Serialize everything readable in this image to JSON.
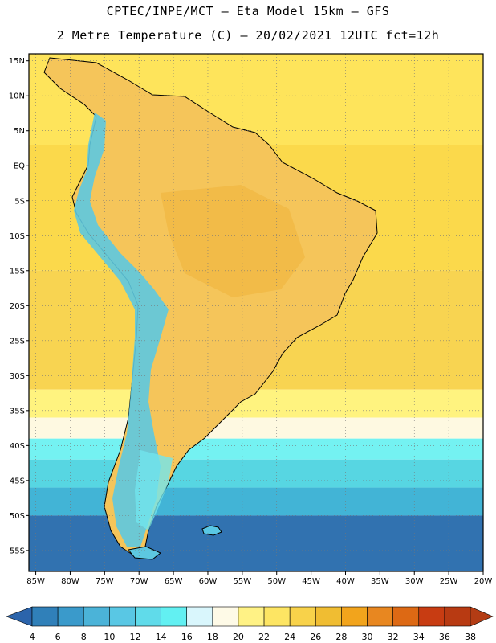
{
  "header": {
    "line1": "CPTEC/INPE/MCT –  Eta Model 15km – GFS",
    "line2": "2 Metre Temperature (C) – 20/02/2021 12UTC fct=12h"
  },
  "map": {
    "lon_range": [
      -86,
      -20
    ],
    "lat_range": [
      -58,
      16
    ],
    "lat_ticks": [
      {
        "v": 15,
        "label": "15N"
      },
      {
        "v": 10,
        "label": "10N"
      },
      {
        "v": 5,
        "label": "5N"
      },
      {
        "v": 0,
        "label": "EQ"
      },
      {
        "v": -5,
        "label": "5S"
      },
      {
        "v": -10,
        "label": "10S"
      },
      {
        "v": -15,
        "label": "15S"
      },
      {
        "v": -20,
        "label": "20S"
      },
      {
        "v": -25,
        "label": "25S"
      },
      {
        "v": -30,
        "label": "30S"
      },
      {
        "v": -35,
        "label": "35S"
      },
      {
        "v": -40,
        "label": "40S"
      },
      {
        "v": -45,
        "label": "45S"
      },
      {
        "v": -50,
        "label": "50S"
      },
      {
        "v": -55,
        "label": "55S"
      }
    ],
    "lon_ticks": [
      {
        "v": -85,
        "label": "85W"
      },
      {
        "v": -80,
        "label": "80W"
      },
      {
        "v": -75,
        "label": "75W"
      },
      {
        "v": -70,
        "label": "70W"
      },
      {
        "v": -65,
        "label": "65W"
      },
      {
        "v": -60,
        "label": "60W"
      },
      {
        "v": -55,
        "label": "55W"
      },
      {
        "v": -50,
        "label": "50W"
      },
      {
        "v": -45,
        "label": "45W"
      },
      {
        "v": -40,
        "label": "40W"
      },
      {
        "v": -35,
        "label": "35W"
      },
      {
        "v": -30,
        "label": "30W"
      },
      {
        "v": -25,
        "label": "25W"
      },
      {
        "v": -20,
        "label": "20W"
      }
    ],
    "grid": "dotted",
    "ocean_bands": [
      {
        "lat_top": 16,
        "lat_bottom": 3,
        "color": "#fee45b"
      },
      {
        "lat_top": 3,
        "lat_bottom": -15,
        "color": "#fbd94b"
      },
      {
        "lat_top": -15,
        "lat_bottom": -32,
        "color": "#f8d451"
      },
      {
        "lat_top": -32,
        "lat_bottom": -36,
        "color": "#fff37f"
      },
      {
        "lat_top": -36,
        "lat_bottom": -39,
        "color": "#fef9e1"
      },
      {
        "lat_top": -39,
        "lat_bottom": -42,
        "color": "#74f2f2"
      },
      {
        "lat_top": -42,
        "lat_bottom": -46,
        "color": "#57d6e2"
      },
      {
        "lat_top": -46,
        "lat_bottom": -50,
        "color": "#42b4d6"
      },
      {
        "lat_top": -50,
        "lat_bottom": -58,
        "color": "#3172b0"
      }
    ],
    "land_color": "#f5c55a",
    "andes_color": "#5dc8e0",
    "coast_color": "#000000"
  },
  "colorbar": {
    "values": [
      "4",
      "6",
      "8",
      "10",
      "12",
      "14",
      "16",
      "18",
      "20",
      "22",
      "24",
      "26",
      "28",
      "30",
      "32",
      "34",
      "36",
      "38"
    ],
    "colors": [
      "#2b64ab",
      "#3080b9",
      "#3a9acb",
      "#4bb3d8",
      "#59c7e4",
      "#60dbea",
      "#62f0f2",
      "#d9f6fc",
      "#fefae7",
      "#fff285",
      "#fde563",
      "#f8d24a",
      "#f0bd32",
      "#f2a41c",
      "#e88720",
      "#dd6914",
      "#c83c12",
      "#b83a12",
      "#b33c14"
    ]
  }
}
